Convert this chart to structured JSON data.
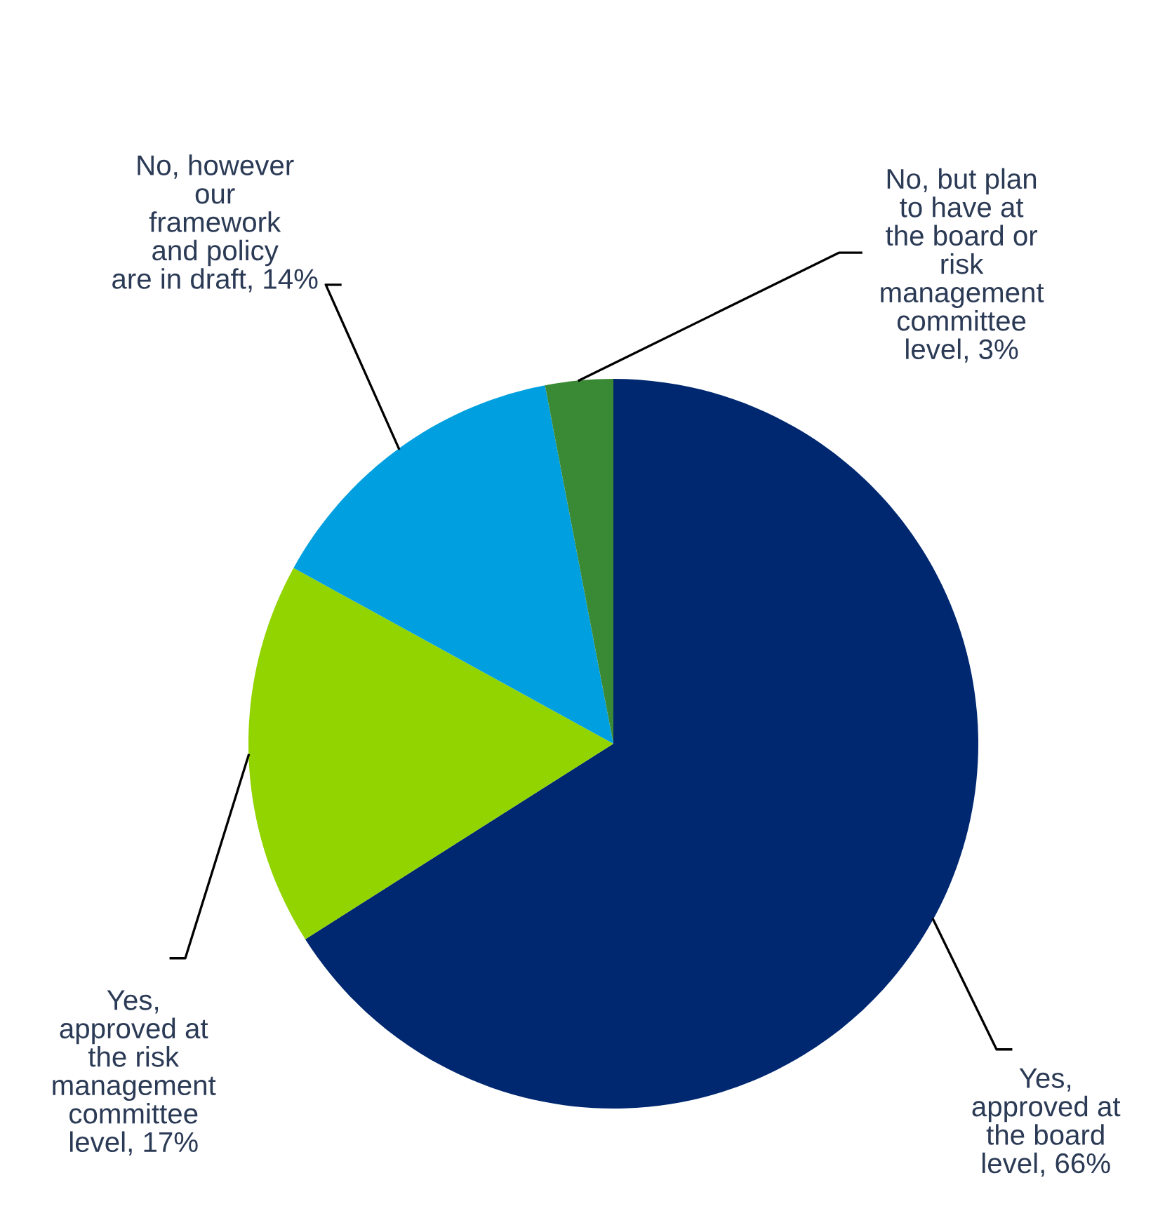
{
  "chart_data": {
    "type": "pie",
    "categories": [
      "Yes,\napproved at\nthe board\nlevel",
      "Yes,\napproved at\nthe risk\nmanagement\ncommittee\nlevel",
      "No, however\nour\nframework\nand policy\nare in draft",
      "No, but plan\nto have at\nthe board or\nrisk\nmanagement\ncommittee\nlevel"
    ],
    "values": [
      66,
      17,
      14,
      3
    ],
    "value_labels": [
      "66%",
      "17%",
      "14%",
      "3%"
    ],
    "colors": [
      "#002870",
      "#92d400",
      "#00a0e0",
      "#3a8a35"
    ]
  }
}
